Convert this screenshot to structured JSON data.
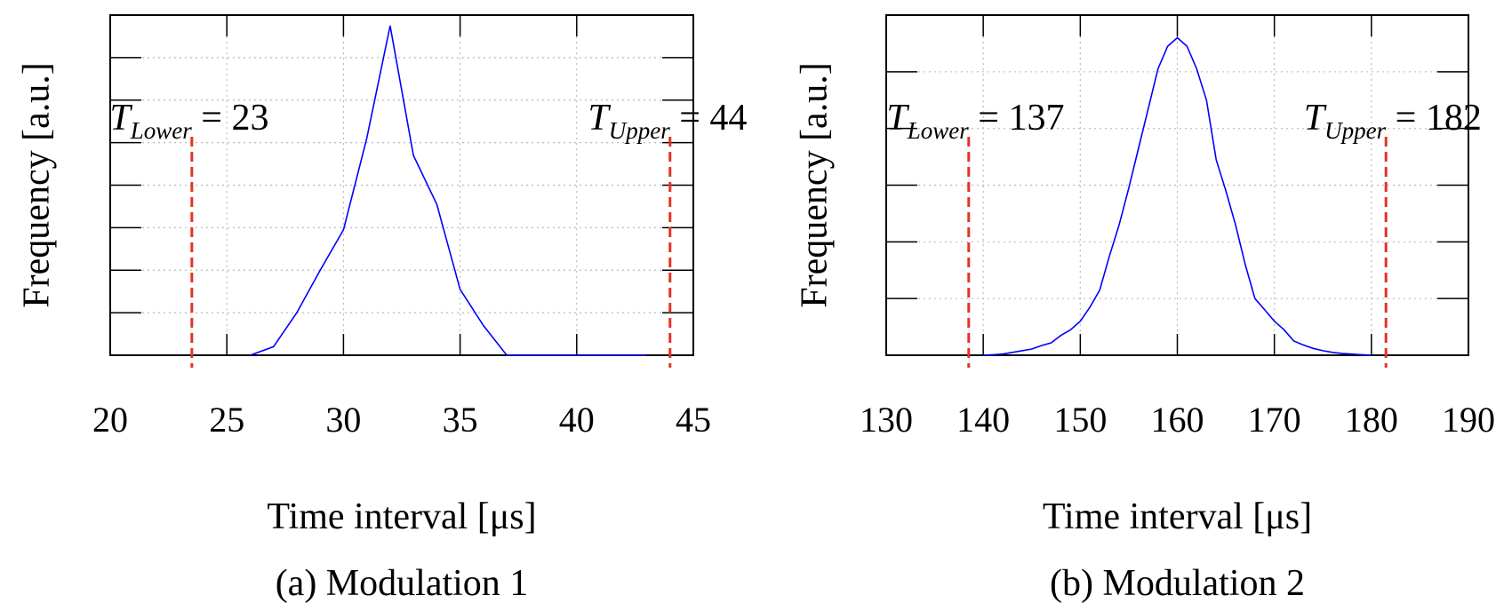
{
  "chart_data": [
    {
      "type": "line",
      "caption": "(a) Modulation 1",
      "xlabel": "Time interval [μs]",
      "ylabel": "Frequency [a.u.]",
      "xlim": [
        20,
        45
      ],
      "ylim": [
        0,
        8
      ],
      "xticks": [
        20,
        25,
        30,
        35,
        40,
        45
      ],
      "yticks": [
        0,
        1,
        2,
        3,
        4,
        5,
        6,
        7,
        8
      ],
      "grid": true,
      "series": [
        {
          "name": "histogram",
          "color": "#0000ff",
          "x": [
            26,
            27,
            28,
            29,
            30,
            31,
            32,
            33,
            34,
            35,
            36,
            37,
            38,
            39,
            40,
            41,
            42,
            43
          ],
          "y": [
            0,
            0.2,
            1.0,
            2.0,
            2.95,
            5.1,
            7.75,
            4.7,
            3.55,
            1.55,
            0.7,
            0,
            0,
            0,
            0,
            0,
            0,
            0
          ]
        }
      ],
      "markers": [
        {
          "symbol": "T",
          "sub": "Lower",
          "text": " = 23",
          "x": 23.5,
          "color": "#e53322"
        },
        {
          "symbol": "T",
          "sub": "Upper",
          "text": " = 44",
          "x": 44,
          "color": "#e53322"
        }
      ]
    },
    {
      "type": "line",
      "caption": "(b) Modulation 2",
      "xlabel": "Time interval [μs]",
      "ylabel": "Frequency [a.u.]",
      "xlim": [
        130,
        190
      ],
      "ylim": [
        0,
        6
      ],
      "xticks": [
        130,
        140,
        150,
        160,
        170,
        180,
        190
      ],
      "yticks": [
        0,
        1,
        2,
        3,
        4,
        5,
        6
      ],
      "grid": true,
      "series": [
        {
          "name": "histogram",
          "color": "#0000ff",
          "x": [
            140,
            141,
            142,
            143,
            144,
            145,
            146,
            147,
            148,
            149,
            150,
            151,
            152,
            153,
            154,
            155,
            156,
            157,
            158,
            159,
            160,
            161,
            162,
            163,
            164,
            165,
            166,
            167,
            168,
            169,
            170,
            171,
            172,
            173,
            174,
            175,
            176,
            177,
            178,
            179,
            180
          ],
          "y": [
            0,
            0.01,
            0.02,
            0.05,
            0.08,
            0.11,
            0.17,
            0.22,
            0.35,
            0.45,
            0.6,
            0.85,
            1.15,
            1.75,
            2.3,
            2.95,
            3.65,
            4.35,
            5.05,
            5.45,
            5.6,
            5.45,
            5.05,
            4.5,
            3.45,
            2.9,
            2.3,
            1.6,
            1.0,
            0.8,
            0.6,
            0.45,
            0.25,
            0.18,
            0.12,
            0.08,
            0.05,
            0.03,
            0.02,
            0.01,
            0
          ]
        }
      ],
      "markers": [
        {
          "symbol": "T",
          "sub": "Lower",
          "text": " = 137",
          "x": 138.5,
          "color": "#e53322"
        },
        {
          "symbol": "T",
          "sub": "Upper",
          "text": " = 182",
          "x": 181.5,
          "color": "#e53322"
        }
      ]
    }
  ]
}
